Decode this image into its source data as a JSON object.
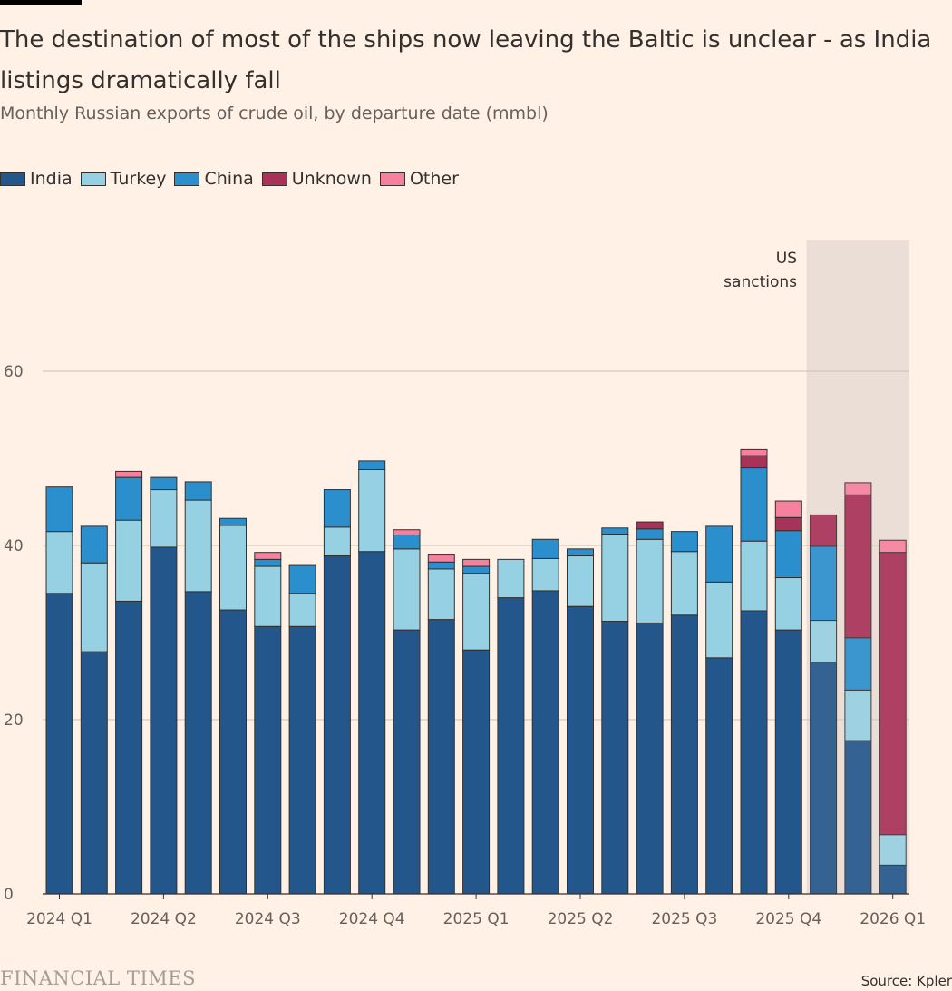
{
  "title": "The destination of most of the ships now leaving the Baltic is unclear - as India listings dramatically fall",
  "subtitle": "Monthly Russian exports of crude oil, by departure date (mmbl)",
  "annotation": {
    "line1": "US",
    "line2": "sanctions"
  },
  "footer": {
    "brand": "FINANCIAL TIMES",
    "source": "Source: Kpler"
  },
  "colors": {
    "India": "#23578C",
    "Turkey": "#96D0E3",
    "China": "#2B8FCE",
    "Unknown": "#A83258",
    "Other": "#F6819E",
    "shade": "#E9DDD5",
    "gridline": "#C7BFB8"
  },
  "chart_data": {
    "type": "bar",
    "stacked": true,
    "title": "The destination of most of the ships now leaving the Baltic is unclear - as India listings dramatically fall",
    "subtitle": "Monthly Russian exports of crude oil, by departure date (mmbl)",
    "ylim": [
      0,
      75
    ],
    "yticks": [
      0,
      20,
      40,
      60
    ],
    "grid": true,
    "legend_position": "top-left",
    "x_tick_labels": [
      "2024 Q1",
      "2024 Q2",
      "2024 Q3",
      "2024 Q4",
      "2025 Q1",
      "2025 Q2",
      "2025 Q3",
      "2025 Q4",
      "2026 Q1"
    ],
    "categories": [
      "2024-01",
      "2024-02",
      "2024-03",
      "2024-04",
      "2024-05",
      "2024-06",
      "2024-07",
      "2024-08",
      "2024-09",
      "2024-10",
      "2024-11",
      "2024-12",
      "2025-01",
      "2025-02",
      "2025-03",
      "2025-04",
      "2025-05",
      "2025-06",
      "2025-07",
      "2025-08",
      "2025-09",
      "2025-10",
      "2025-11",
      "2025-12",
      "2026-01"
    ],
    "series": [
      {
        "name": "India",
        "values": [
          34.5,
          27.8,
          33.6,
          39.8,
          34.7,
          32.6,
          30.7,
          30.7,
          38.8,
          39.3,
          30.3,
          31.5,
          28.0,
          34.0,
          34.8,
          33.0,
          31.3,
          31.1,
          32.0,
          27.1,
          32.5,
          30.3,
          26.6,
          17.6,
          3.3
        ]
      },
      {
        "name": "Turkey",
        "values": [
          7.1,
          10.2,
          9.3,
          6.6,
          10.5,
          9.7,
          6.9,
          3.8,
          3.3,
          9.4,
          9.3,
          5.8,
          8.8,
          4.4,
          3.7,
          5.8,
          10.0,
          9.6,
          7.3,
          8.7,
          8.0,
          6.0,
          4.8,
          5.8,
          3.5
        ]
      },
      {
        "name": "China",
        "values": [
          5.1,
          4.2,
          4.9,
          1.4,
          2.1,
          0.8,
          0.8,
          3.2,
          4.3,
          1.0,
          1.6,
          0.8,
          0.8,
          0.0,
          2.2,
          0.8,
          0.7,
          1.2,
          2.3,
          6.4,
          8.4,
          5.4,
          8.5,
          6.0,
          0.0
        ]
      },
      {
        "name": "Unknown",
        "values": [
          0.0,
          0.0,
          0.0,
          0.0,
          0.0,
          0.0,
          0.0,
          0.0,
          0.0,
          0.0,
          0.0,
          0.0,
          0.0,
          0.0,
          0.0,
          0.0,
          0.0,
          0.8,
          0.0,
          0.0,
          1.4,
          1.5,
          3.6,
          16.4,
          32.4
        ]
      },
      {
        "name": "Other",
        "values": [
          0.0,
          0.0,
          0.7,
          0.0,
          0.0,
          0.0,
          0.8,
          0.0,
          0.0,
          0.0,
          0.6,
          0.8,
          0.8,
          0.0,
          0.0,
          0.0,
          0.0,
          0.0,
          0.0,
          0.0,
          0.7,
          1.9,
          0.0,
          1.4,
          1.4
        ]
      }
    ],
    "shaded_region": {
      "from": "2025-11",
      "to": "2026-01",
      "label": "US sanctions"
    }
  }
}
